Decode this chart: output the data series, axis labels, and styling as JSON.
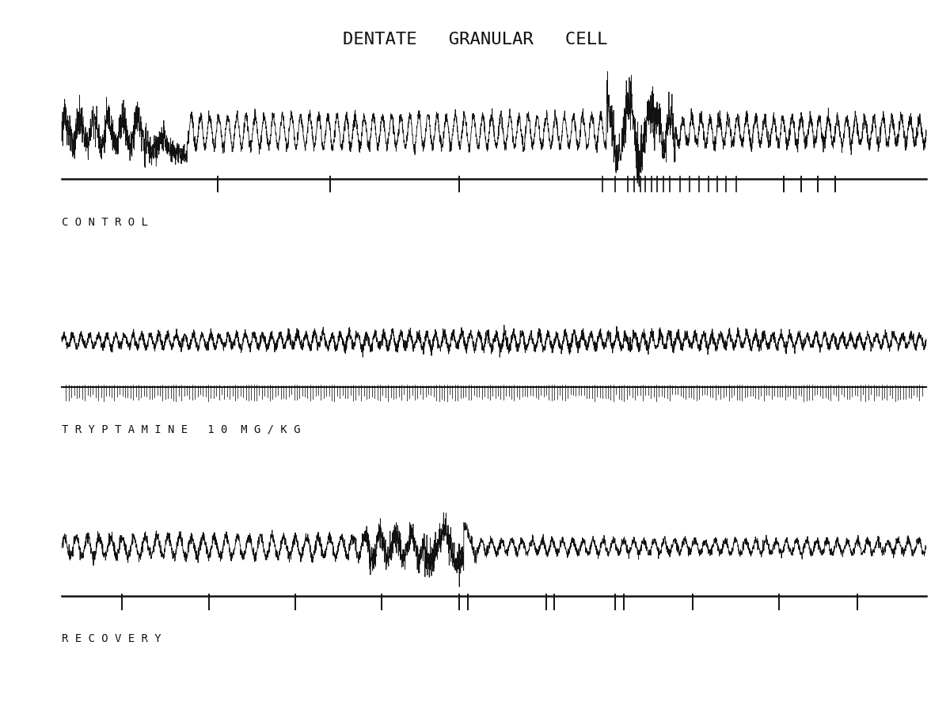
{
  "title": "DENTATE   GRANULAR   CELL",
  "title_fontsize": 16,
  "background_color": "#ffffff",
  "text_color": "#111111",
  "label_control": "C O N T R O L",
  "label_tryptamine": "T R Y P T A M I N E   1 0  M G / K G",
  "label_recovery": "R E C O V E R Y",
  "label_fontsize": 10,
  "line_color": "#111111",
  "n_points": 5000
}
